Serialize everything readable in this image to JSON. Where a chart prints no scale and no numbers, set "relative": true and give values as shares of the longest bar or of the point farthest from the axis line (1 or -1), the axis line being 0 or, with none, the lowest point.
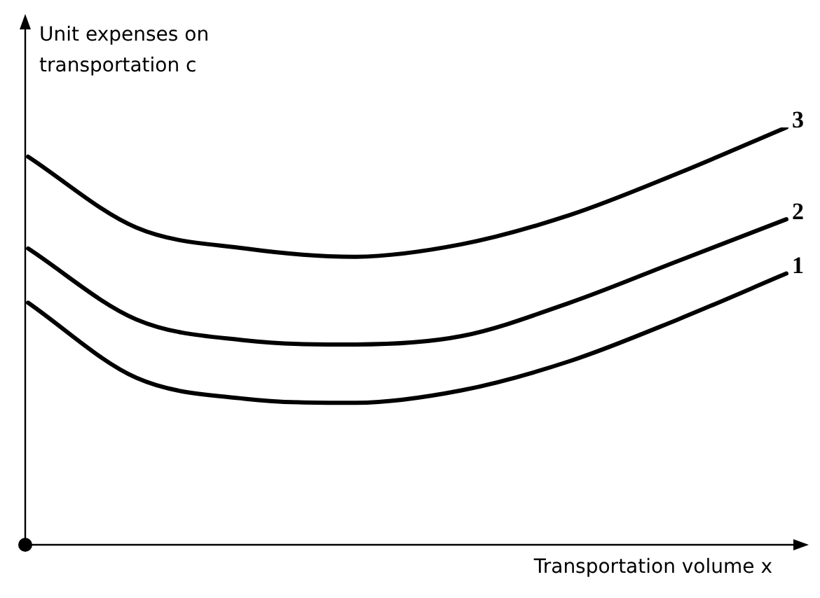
{
  "chart_data": {
    "type": "line",
    "relative": true,
    "xlabel": "Transportation volume x",
    "ylabel": "Unit expenses on transportation c",
    "categories": [
      null,
      null,
      null,
      null,
      null,
      null,
      null,
      null
    ],
    "series": [
      {
        "name": "1",
        "color": "#000000",
        "values": [
          0.58,
          0.4,
          0.35,
          0.34,
          0.37,
          0.44,
          0.54,
          0.65
        ]
      },
      {
        "name": "2",
        "color": "#000000",
        "values": [
          0.71,
          0.54,
          0.49,
          0.48,
          0.5,
          0.58,
          0.68,
          0.78
        ]
      },
      {
        "name": "3",
        "color": "#000000",
        "values": [
          0.93,
          0.76,
          0.71,
          0.69,
          0.72,
          0.79,
          0.89,
          1
        ]
      }
    ],
    "legend": false,
    "marker": "none"
  }
}
